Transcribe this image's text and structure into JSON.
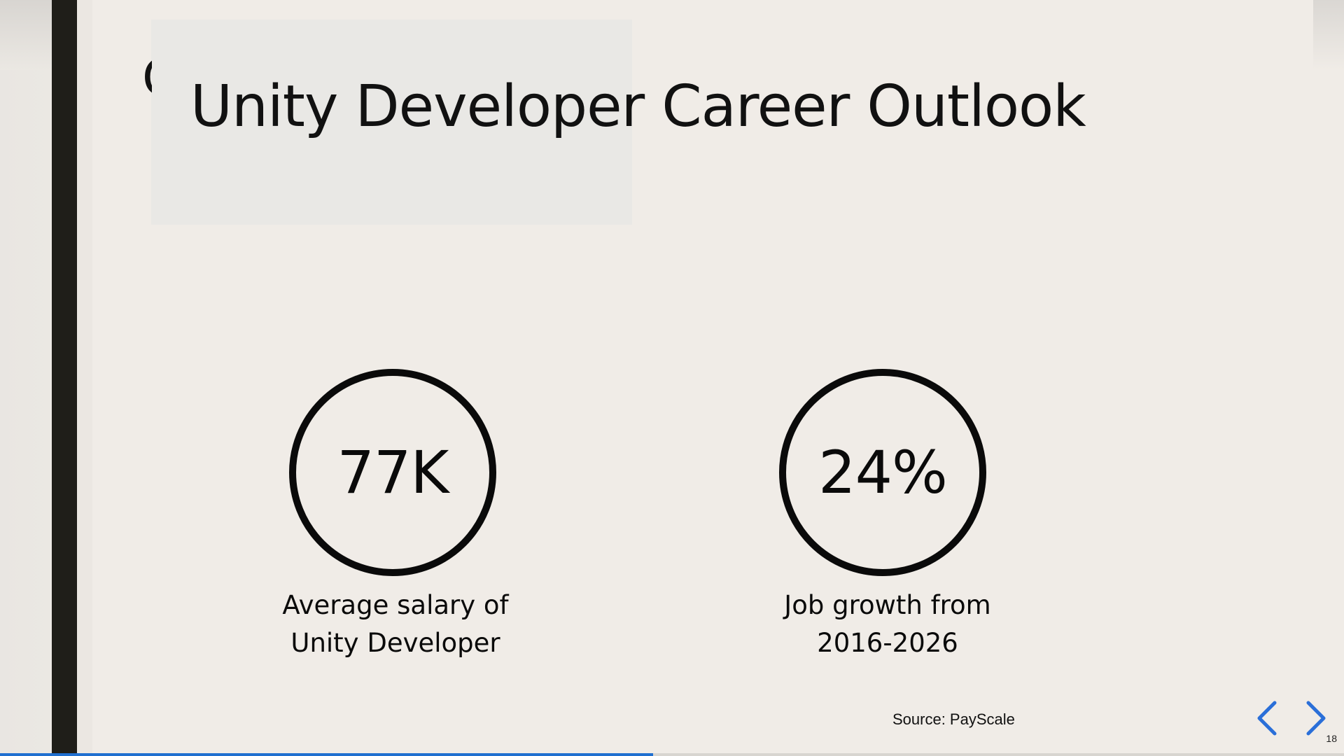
{
  "slide": {
    "title": "Unity Developer Career Outlook",
    "title_ghost_char": "C",
    "stats": [
      {
        "value": "77K",
        "caption_line1": "Average salary of",
        "caption_line2": "Unity Developer"
      },
      {
        "value": "24%",
        "caption_line1": "Job growth from",
        "caption_line2": "2016-2026"
      }
    ],
    "source": "Source: PayScale"
  },
  "navigation": {
    "page_number": "18",
    "previous_icon": "chevron-left-icon",
    "next_icon": "chevron-right-icon",
    "progress": 0.486
  },
  "colors": {
    "background": "#f0ece7",
    "accent": "#2a6fd8",
    "progress": "#1f6fd0",
    "text": "#0a0a0a"
  }
}
